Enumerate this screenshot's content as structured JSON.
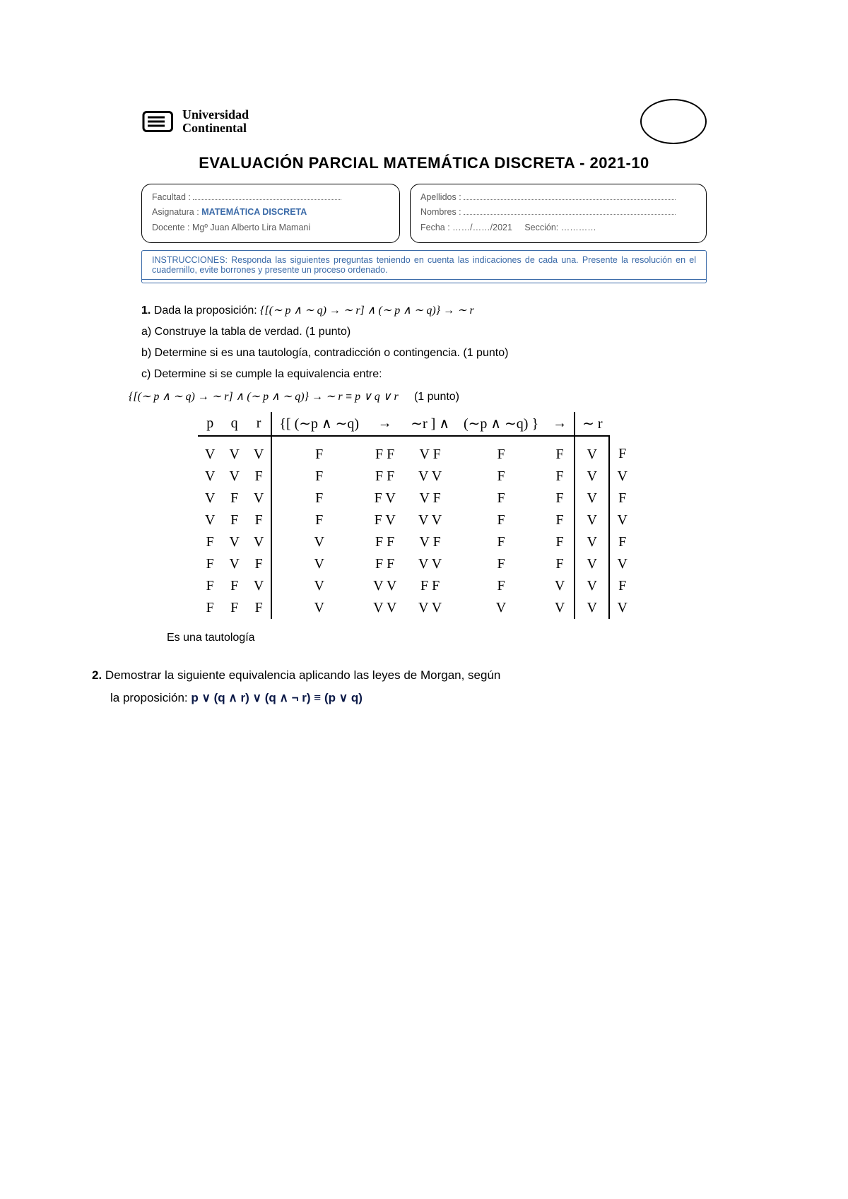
{
  "university": {
    "line1": "Universidad",
    "line2": "Continental"
  },
  "exam_title": "EVALUACIÓN PARCIAL MATEMÁTICA DISCRETA - 2021-10",
  "info_left": {
    "facultad_label": "Facultad :",
    "asignatura_label": "Asignatura :",
    "asignatura_value": "MATEMÁTICA DISCRETA",
    "docente_label": "Docente   :",
    "docente_value": "Mgº Juan Alberto Lira Mamani"
  },
  "info_right": {
    "apellidos_label": "Apellidos  :",
    "nombres_label": "Nombres  :",
    "fecha_label": "Fecha       :",
    "fecha_value": "……/……/2021",
    "seccion_label": "Sección:",
    "seccion_dots": "…………"
  },
  "instructions": "INSTRUCCIONES: Responda las siguientes preguntas teniendo en cuenta las indicaciones de cada una. Presente la resolución en el cuadernillo, evite borrones y presente un proceso ordenado.",
  "q1": {
    "num": "1.",
    "lead": " Dada la proposición: ",
    "prop": "{[(∼ p  ∧ ∼ q) → ∼ r] ∧ (∼ p  ∧ ∼  q)} → ∼  r",
    "a": "a) Construye la tabla de verdad. (1 punto)",
    "b": "b) Determine si es una tautología, contradicción o contingencia. (1 punto)",
    "c_lead": "c) Determine si se cumple la equivalencia entre:",
    "c_expr_left": "{[(∼ p  ∧ ∼ q) → ∼ r] ∧ (∼ p  ∧ ∼  q)} → ∼  r",
    "c_equiv": " ≡ ",
    "c_expr_right": "p ∨ q ∨ r",
    "c_pts": "(1 punto)"
  },
  "tt": {
    "headers": {
      "p": "p",
      "q": "q",
      "r": "r",
      "open": "{[ (∼p ∧ ∼q)",
      "imp": "→",
      "nr": "∼r ] ∧",
      "rep": "(∼p  ∧  ∼q) }",
      "imp2": "→",
      "nr2": "∼ r"
    },
    "rows": [
      {
        "p": "V",
        "q": "V",
        "r": "V",
        "c": [
          "F",
          "F F",
          "V",
          "F",
          "F",
          "F"
        ],
        "res": "V",
        "nr": "F"
      },
      {
        "p": "V",
        "q": "V",
        "r": "F",
        "c": [
          "F",
          "F F",
          "V",
          "V",
          "F",
          "F"
        ],
        "res": "V",
        "nr": "V"
      },
      {
        "p": "V",
        "q": "F",
        "r": "V",
        "c": [
          "F",
          "F V",
          "V",
          "F",
          "F",
          "F"
        ],
        "res": "V",
        "nr": "F"
      },
      {
        "p": "V",
        "q": "F",
        "r": "F",
        "c": [
          "F",
          "F V",
          "V",
          "V",
          "F",
          "F"
        ],
        "res": "V",
        "nr": "V"
      },
      {
        "p": "F",
        "q": "V",
        "r": "V",
        "c": [
          "V",
          "F  F",
          "V",
          "F",
          "F",
          "F"
        ],
        "res": "V",
        "nr": "F"
      },
      {
        "p": "F",
        "q": "V",
        "r": "F",
        "c": [
          "V",
          "F  F",
          "V",
          "V",
          "F",
          "F"
        ],
        "res": "V",
        "nr": "V"
      },
      {
        "p": "F",
        "q": "F",
        "r": "V",
        "c": [
          "V",
          "V V",
          "F",
          "F",
          "F",
          "V"
        ],
        "res": "V",
        "nr": "F"
      },
      {
        "p": "F",
        "q": "F",
        "r": "F",
        "c": [
          "V",
          "V V",
          "V",
          "V",
          "V",
          "V"
        ],
        "res": "V",
        "nr": "V"
      }
    ],
    "conclusion": "Es una tautología"
  },
  "q2": {
    "num": "2.",
    "lead": " Demostrar la siguiente equivalencia aplicando las leyes de Morgan, según",
    "line2_lead": "la proposición: ",
    "prop": "p ∨ (q ∧ r) ∨ (q ∧ ¬ r) ≡ (p ∨ q)"
  },
  "colors": {
    "accent": "#3a6aa8",
    "text": "#000000"
  }
}
